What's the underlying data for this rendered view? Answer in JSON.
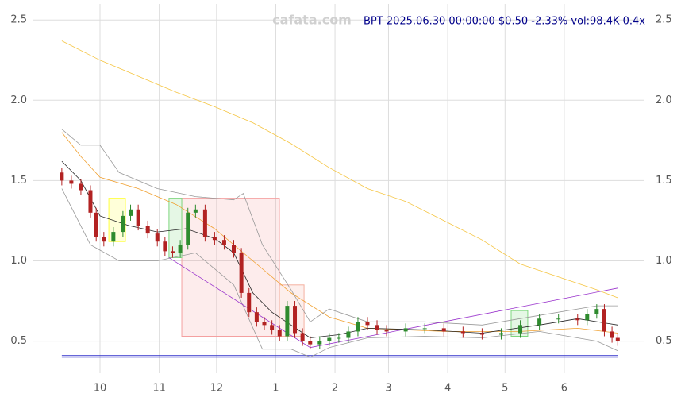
{
  "chart_data": {
    "type": "candlestick",
    "title": "BPT 2025.06.30 00:00:00 $0.50 -2.33% vol:98.4K 0.4x",
    "watermark": "cafata.com",
    "x": [
      10,
      15,
      20,
      25,
      28,
      32,
      37,
      42,
      46,
      50,
      55,
      60,
      64,
      68,
      72,
      76,
      80,
      85,
      90,
      95,
      100,
      104,
      108,
      112,
      116,
      120,
      124,
      128,
      132,
      136,
      140,
      145,
      150,
      155,
      160,
      165,
      170,
      175,
      180,
      190,
      200,
      210,
      220,
      230,
      240,
      250,
      260,
      270,
      280,
      285,
      290,
      294,
      298,
      301
    ],
    "open": [
      1.55,
      1.5,
      1.48,
      1.44,
      1.3,
      1.15,
      1.12,
      1.18,
      1.28,
      1.32,
      1.22,
      1.17,
      1.12,
      1.06,
      1.05,
      1.1,
      1.3,
      1.32,
      1.15,
      1.13,
      1.1,
      1.05,
      0.8,
      0.68,
      0.62,
      0.6,
      0.57,
      0.53,
      0.72,
      0.55,
      0.5,
      0.48,
      0.5,
      0.52,
      0.52,
      0.56,
      0.62,
      0.6,
      0.57,
      0.56,
      0.58,
      0.58,
      0.56,
      0.55,
      0.54,
      0.55,
      0.6,
      0.64,
      0.64,
      0.63,
      0.67,
      0.7,
      0.56,
      0.52
    ],
    "high": [
      1.58,
      1.53,
      1.51,
      1.47,
      1.33,
      1.18,
      1.21,
      1.31,
      1.35,
      1.35,
      1.25,
      1.2,
      1.15,
      1.09,
      1.13,
      1.33,
      1.35,
      1.35,
      1.18,
      1.16,
      1.13,
      1.08,
      0.83,
      0.71,
      0.65,
      0.63,
      0.6,
      0.75,
      0.75,
      0.58,
      0.53,
      0.53,
      0.55,
      0.55,
      0.59,
      0.65,
      0.65,
      0.63,
      0.6,
      0.61,
      0.61,
      0.61,
      0.59,
      0.58,
      0.58,
      0.63,
      0.67,
      0.67,
      0.67,
      0.7,
      0.73,
      0.73,
      0.59,
      0.55
    ],
    "low": [
      1.47,
      1.45,
      1.41,
      1.27,
      1.12,
      1.09,
      1.09,
      1.15,
      1.25,
      1.19,
      1.14,
      1.09,
      1.03,
      1.02,
      1.02,
      1.07,
      1.27,
      1.12,
      1.1,
      1.07,
      1.02,
      0.77,
      0.65,
      0.59,
      0.57,
      0.54,
      0.5,
      0.5,
      0.52,
      0.47,
      0.45,
      0.45,
      0.47,
      0.49,
      0.49,
      0.53,
      0.57,
      0.54,
      0.53,
      0.53,
      0.55,
      0.53,
      0.52,
      0.51,
      0.51,
      0.52,
      0.57,
      0.61,
      0.6,
      0.6,
      0.64,
      0.53,
      0.49,
      0.47
    ],
    "close": [
      1.5,
      1.48,
      1.44,
      1.3,
      1.15,
      1.12,
      1.18,
      1.28,
      1.32,
      1.22,
      1.17,
      1.12,
      1.06,
      1.05,
      1.1,
      1.3,
      1.32,
      1.15,
      1.13,
      1.1,
      1.05,
      0.8,
      0.68,
      0.62,
      0.6,
      0.57,
      0.53,
      0.72,
      0.55,
      0.5,
      0.48,
      0.5,
      0.52,
      0.52,
      0.56,
      0.62,
      0.6,
      0.57,
      0.56,
      0.58,
      0.58,
      0.56,
      0.55,
      0.54,
      0.55,
      0.6,
      0.64,
      0.64,
      0.63,
      0.67,
      0.7,
      0.56,
      0.52,
      0.5
    ],
    "up_color": "#2e8b2e",
    "down_color": "#b22222",
    "lines": [
      {
        "color": "#f5c542",
        "x": [
          10,
          30,
          50,
          70,
          90,
          110,
          130,
          150,
          170,
          190,
          210,
          230,
          250,
          270,
          290,
          301
        ],
        "values": [
          2.37,
          2.25,
          2.15,
          2.05,
          1.96,
          1.86,
          1.73,
          1.58,
          1.45,
          1.37,
          1.25,
          1.13,
          0.98,
          0.9,
          0.82,
          0.77
        ]
      },
      {
        "color": "#f0a030",
        "x": [
          10,
          20,
          30,
          50,
          70,
          90,
          110,
          130,
          150,
          170,
          190,
          210,
          250,
          280,
          301
        ],
        "values": [
          1.8,
          1.65,
          1.52,
          1.45,
          1.35,
          1.2,
          1.0,
          0.8,
          0.65,
          0.58,
          0.57,
          0.56,
          0.56,
          0.58,
          0.55
        ]
      },
      {
        "color": "#222222",
        "x": [
          10,
          20,
          30,
          45,
          60,
          75,
          90,
          100,
          110,
          120,
          130,
          140,
          155,
          170,
          200,
          230,
          260,
          280,
          301
        ],
        "values": [
          1.62,
          1.5,
          1.28,
          1.22,
          1.18,
          1.2,
          1.14,
          1.05,
          0.8,
          0.68,
          0.6,
          0.52,
          0.54,
          0.58,
          0.57,
          0.55,
          0.6,
          0.64,
          0.6
        ]
      },
      {
        "color": "#999999",
        "x": [
          10,
          20,
          30,
          40,
          60,
          80,
          100,
          105,
          115,
          130,
          140,
          150,
          170,
          200,
          230,
          260,
          290,
          301
        ],
        "values": [
          1.82,
          1.72,
          1.72,
          1.55,
          1.45,
          1.4,
          1.38,
          1.42,
          1.1,
          0.82,
          0.62,
          0.7,
          0.62,
          0.62,
          0.6,
          0.66,
          0.72,
          0.72
        ]
      },
      {
        "color": "#999999",
        "x": [
          10,
          25,
          40,
          60,
          80,
          100,
          115,
          130,
          140,
          150,
          170,
          200,
          230,
          260,
          290,
          301
        ],
        "values": [
          1.45,
          1.1,
          1.0,
          1.0,
          1.05,
          0.85,
          0.45,
          0.45,
          0.4,
          0.46,
          0.52,
          0.53,
          0.52,
          0.56,
          0.5,
          0.44
        ]
      },
      {
        "color": "#9932cc",
        "x": [
          66,
          140,
          301
        ],
        "values": [
          1.02,
          0.46,
          0.83
        ]
      }
    ],
    "boxes": [
      {
        "x0": 72.8,
        "x1": 123.9,
        "y0": 0.53,
        "y1": 1.39,
        "color": "#f4a0a0"
      },
      {
        "x0": 34.6,
        "x1": 43.3,
        "y0": 1.12,
        "y1": 1.39,
        "color": "#ffff40"
      },
      {
        "x0": 66.1,
        "x1": 72.8,
        "y0": 1.02,
        "y1": 1.39,
        "color": "#7fd67f"
      },
      {
        "x0": 123.9,
        "x1": 136.8,
        "y0": 0.53,
        "y1": 0.85,
        "color": "#f4b0a0"
      },
      {
        "x0": 245.2,
        "x1": 253.9,
        "y0": 0.53,
        "y1": 0.69,
        "color": "#7fd67f"
      }
    ],
    "hlines": [
      0.4,
      0.41
    ],
    "hline_color": "#3333cc",
    "xlim": [
      -4.9,
      315
    ],
    "ylim": [
      0.3,
      2.6
    ],
    "xticks": [
      {
        "value": 30,
        "label": "10"
      },
      {
        "value": 61,
        "label": "11"
      },
      {
        "value": 91,
        "label": "12"
      },
      {
        "value": 122,
        "label": "1"
      },
      {
        "value": 153,
        "label": "2"
      },
      {
        "value": 181,
        "label": "3"
      },
      {
        "value": 212,
        "label": "4"
      },
      {
        "value": 242,
        "label": "5"
      },
      {
        "value": 273,
        "label": "6"
      }
    ],
    "yticks": [
      {
        "value": 0.5,
        "label": "0.5"
      },
      {
        "value": 1.0,
        "label": "1.0"
      },
      {
        "value": 1.5,
        "label": "1.5"
      },
      {
        "value": 2.0,
        "label": "2.0"
      },
      {
        "value": 2.5,
        "label": "2.5"
      }
    ],
    "grid": true
  }
}
